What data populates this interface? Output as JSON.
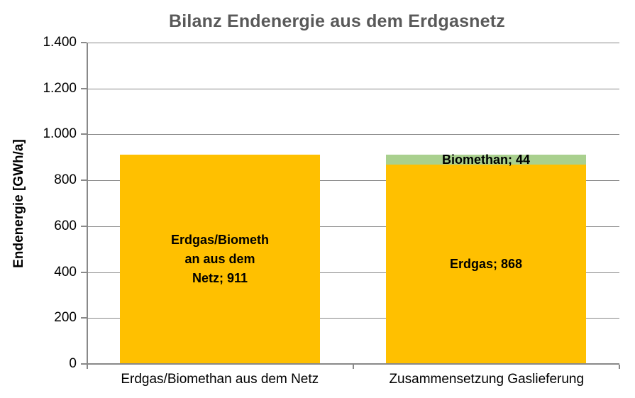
{
  "title": "Bilanz Endenergie aus dem Erdgasnetz",
  "colors": {
    "erdgas": "#FFC000",
    "biomethan": "#A9D08E",
    "title_text": "#595959",
    "axis_gray": "#898989",
    "label_text": "#000000"
  },
  "chart_data": {
    "type": "bar",
    "stacked": true,
    "title": "Bilanz Endenergie aus dem Erdgasnetz",
    "ylabel": "Endenergie [GWh/a]",
    "xlabel": "",
    "ylim": [
      0,
      1400
    ],
    "ytick_interval": 200,
    "yticks": [
      {
        "value": 0,
        "label": "0"
      },
      {
        "value": 200,
        "label": "200"
      },
      {
        "value": 400,
        "label": "400"
      },
      {
        "value": 600,
        "label": "600"
      },
      {
        "value": 800,
        "label": "800"
      },
      {
        "value": 1000,
        "label": "1.000"
      },
      {
        "value": 1200,
        "label": "1.200"
      },
      {
        "value": 1400,
        "label": "1.400"
      }
    ],
    "grid": "horizontal",
    "legend": "none",
    "categories": [
      "Erdgas/Biomethan aus dem Netz",
      "Zusammensetzung Gaslieferung"
    ],
    "bars": [
      {
        "category": "Erdgas/Biomethan aus dem Netz",
        "total": 911,
        "segments": [
          {
            "name": "Erdgas/Biomethan aus dem Netz",
            "value": 911,
            "color": "#FFC000",
            "label_lines": [
              "Erdgas/Biometh",
              "an aus dem",
              "Netz; 911"
            ]
          }
        ]
      },
      {
        "category": "Zusammensetzung Gaslieferung",
        "total": 912,
        "segments": [
          {
            "name": "Erdgas",
            "value": 868,
            "color": "#FFC000",
            "label_lines": [
              "Erdgas; 868"
            ]
          },
          {
            "name": "Biomethan",
            "value": 44,
            "color": "#A9D08E",
            "label_lines": [
              "Biomethan; 44"
            ]
          }
        ]
      }
    ]
  }
}
